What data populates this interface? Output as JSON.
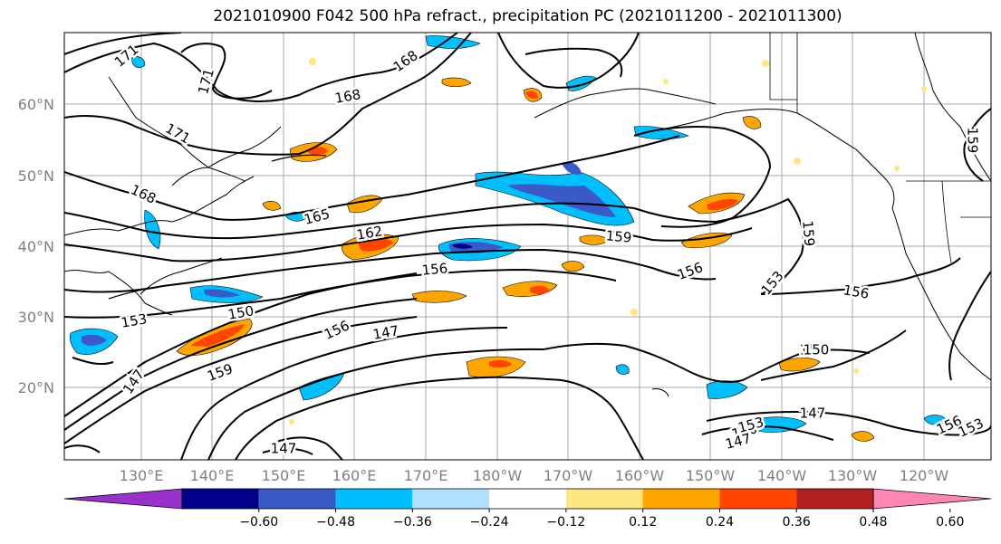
{
  "title": "2021010900 F042 500 hPa refract., precipitation PC (2021011200 - 2021011300)",
  "lat_labels": [
    "20°N",
    "30°N",
    "40°N",
    "50°N",
    "60°N"
  ],
  "lon_labels": [
    "130°E",
    "140°E",
    "150°E",
    "160°E",
    "170°E",
    "180°W",
    "170°W",
    "160°W",
    "150°W",
    "140°W",
    "130°W",
    "120°W"
  ],
  "contour_labels": [
    "171",
    "171",
    "168",
    "168",
    "171",
    "168",
    "165",
    "162",
    "159",
    "159",
    "156",
    "156",
    "153",
    "153",
    "150",
    "150",
    "147",
    "147",
    "156",
    "159",
    "147",
    "156",
    "159",
    "156",
    "153",
    "150",
    "153",
    "147",
    "147",
    "150"
  ],
  "colorbar": {
    "ticks": [
      "−0.60",
      "−0.48",
      "−0.36",
      "−0.24",
      "−0.12",
      "0.12",
      "0.24",
      "0.36",
      "0.48",
      "0.60"
    ],
    "colors": [
      "#9932CC",
      "#00008B",
      "#3A5BC7",
      "#00BFFF",
      "#B0E0FF",
      "#FFFFFF",
      "#FFE680",
      "#FFA500",
      "#FF4500",
      "#B22222",
      "#FF85B3"
    ]
  },
  "chart_data": {
    "type": "heatmap",
    "title": "2021010900 F042 500 hPa refract., precipitation PC (2021011200 - 2021011300)",
    "xlabel": "",
    "ylabel": "",
    "x_ticks": [
      "130°E",
      "140°E",
      "150°E",
      "160°E",
      "170°E",
      "180°W",
      "170°W",
      "160°W",
      "150°W",
      "140°W",
      "130°W",
      "120°W"
    ],
    "y_ticks": [
      "20°N",
      "30°N",
      "40°N",
      "50°N",
      "60°N"
    ],
    "contour_levels": [
      147,
      150,
      153,
      156,
      159,
      162,
      165,
      168,
      171
    ],
    "color_levels": [
      -0.6,
      -0.48,
      -0.36,
      -0.24,
      -0.12,
      0.12,
      0.24,
      0.36,
      0.48,
      0.6
    ],
    "grid": true,
    "colorbar_placement": "bottom"
  }
}
